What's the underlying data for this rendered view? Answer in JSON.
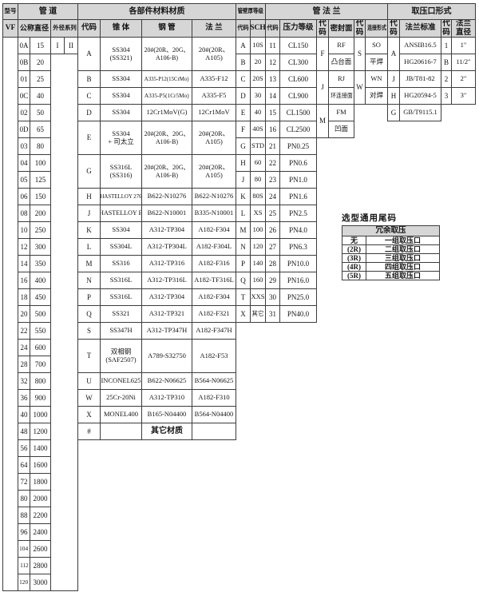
{
  "header": {
    "row1": [
      "型号",
      "管 道",
      "各部件材料材质",
      "管壁厚等级",
      "管 法 兰",
      "取压口形式"
    ],
    "row2": [
      "VF",
      "公称直径",
      "外径系列",
      "代码",
      "锥 体",
      "钢 管",
      "法 兰",
      "代码",
      "SCH",
      "代码",
      "压力等级",
      "代\n码",
      "密封面",
      "代\n码",
      "连接形式",
      "代\n码",
      "法兰标准",
      "代\n码",
      "法兰\n直径"
    ]
  },
  "pipes": [
    [
      "0A",
      "15"
    ],
    [
      "0B",
      "20"
    ],
    [
      "01",
      "25"
    ],
    [
      "0C",
      "40"
    ],
    [
      "02",
      "50"
    ],
    [
      "0D",
      "65"
    ],
    [
      "03",
      "80"
    ],
    [
      "04",
      "100"
    ],
    [
      "05",
      "125"
    ],
    [
      "06",
      "150"
    ],
    [
      "08",
      "200"
    ],
    [
      "10",
      "250"
    ],
    [
      "12",
      "300"
    ],
    [
      "14",
      "350"
    ],
    [
      "16",
      "400"
    ],
    [
      "18",
      "450"
    ],
    [
      "20",
      "500"
    ],
    [
      "22",
      "550"
    ],
    [
      "24",
      "600"
    ],
    [
      "28",
      "700"
    ],
    [
      "32",
      "800"
    ],
    [
      "36",
      "900"
    ],
    [
      "40",
      "1000"
    ],
    [
      "48",
      "1200"
    ],
    [
      "56",
      "1400"
    ],
    [
      "64",
      "1600"
    ],
    [
      "72",
      "1800"
    ],
    [
      "80",
      "2000"
    ],
    [
      "88",
      "2200"
    ],
    [
      "96",
      "2400"
    ],
    [
      "104",
      "2600"
    ],
    [
      "112",
      "2800"
    ],
    [
      "120",
      "3000"
    ]
  ],
  "series": [
    "I",
    "II"
  ],
  "materials": [
    {
      "code": "A",
      "span": 2,
      "cone": "SS304\n(SS321)",
      "pipe": "20#(20R、20G、\nA106-B)",
      "flange": "20#(20R、\nA105)"
    },
    {
      "code": "B",
      "span": 1,
      "cone": "SS304",
      "pipe": "A335-P12(15CrMo)",
      "flange": "A335-F12"
    },
    {
      "code": "C",
      "span": 1,
      "cone": "SS304",
      "pipe": "A335-P5(1Cr5Mo)",
      "flange": "A335-F5"
    },
    {
      "code": "D",
      "span": 1,
      "cone": "SS304",
      "pipe": "12Cr1MoV(G)",
      "flange": "12Cr1MoV"
    },
    {
      "code": "E",
      "span": 2,
      "cone": "SS304\n+ 司太立",
      "pipe": "20#(20R、20G、\nA106-B)",
      "flange": "20#(20R、\nA105)"
    },
    {
      "code": "G",
      "span": 2,
      "cone": "SS316L\n(SS316)",
      "pipe": "20#(20R、20G、\nA106-B)",
      "flange": "20#(20R、\nA105)"
    },
    {
      "code": "H",
      "span": 1,
      "cone": "HASTELLOY 276",
      "pipe": "B622-N10276",
      "flange": "B622-N10276"
    },
    {
      "code": "J",
      "span": 1,
      "cone": "HASTELLOY B",
      "pipe": "B622-N10001",
      "flange": "B335-N10001"
    },
    {
      "code": "K",
      "span": 1,
      "cone": "SS304",
      "pipe": "A312-TP304",
      "flange": "A182-F304"
    },
    {
      "code": "L",
      "span": 1,
      "cone": "SS304L",
      "pipe": "A312-TP304L",
      "flange": "A182-F304L"
    },
    {
      "code": "M",
      "span": 1,
      "cone": "SS316",
      "pipe": "A312-TP316",
      "flange": "A182-F316"
    },
    {
      "code": "N",
      "span": 1,
      "cone": "SS316L",
      "pipe": "A312-TP316L",
      "flange": "A182-TF316L"
    },
    {
      "code": "P",
      "span": 1,
      "cone": "SS316L",
      "pipe": "A312-TP304",
      "flange": "A182-F304"
    },
    {
      "code": "Q",
      "span": 1,
      "cone": "SS321",
      "pipe": "A312-TP321",
      "flange": "A182-F321"
    },
    {
      "code": "S",
      "span": 1,
      "cone": "SS347H",
      "pipe": "A312-TP347H",
      "flange": "A182-F347H"
    },
    {
      "code": "T",
      "span": 2,
      "cone": "双相钢\n(SAF2507)",
      "pipe": "A789-S32750",
      "flange": "A182-F53"
    },
    {
      "code": "U",
      "span": 1,
      "cone": "INCONEL625",
      "pipe": "B622-N06625",
      "flange": "B564-N06625"
    },
    {
      "code": "W",
      "span": 1,
      "cone": "25Cr-20Ni",
      "pipe": "A312-TP310",
      "flange": "A182-F310"
    },
    {
      "code": "X",
      "span": 1,
      "cone": "MONEL400",
      "pipe": "B165-N04400",
      "flange": "B564-N04400"
    },
    {
      "code": "#",
      "span": 1,
      "cone": "",
      "pipe": "其它材质",
      "flange": ""
    }
  ],
  "sch": [
    [
      "A",
      "10S"
    ],
    [
      "B",
      "20"
    ],
    [
      "C",
      "20S"
    ],
    [
      "D",
      "30"
    ],
    [
      "E",
      "40"
    ],
    [
      "F",
      "40S"
    ],
    [
      "G",
      "STD"
    ],
    [
      "H",
      "60"
    ],
    [
      "J",
      "80"
    ],
    [
      "K",
      "80S"
    ],
    [
      "L",
      "XS"
    ],
    [
      "M",
      "100"
    ],
    [
      "N",
      "120"
    ],
    [
      "P",
      "140"
    ],
    [
      "Q",
      "160"
    ],
    [
      "T",
      "XXS"
    ],
    [
      "X",
      "其它"
    ]
  ],
  "pressure": [
    [
      "11",
      "CL150"
    ],
    [
      "12",
      "CL300"
    ],
    [
      "13",
      "CL600"
    ],
    [
      "14",
      "CL900"
    ],
    [
      "15",
      "CL1500"
    ],
    [
      "16",
      "CL2500"
    ],
    [
      "21",
      "PN0.25"
    ],
    [
      "22",
      "PN0.6"
    ],
    [
      "23",
      "PN1.0"
    ],
    [
      "24",
      "PN1.6"
    ],
    [
      "25",
      "PN2.5"
    ],
    [
      "26",
      "PN4.0"
    ],
    [
      "27",
      "PN6.3"
    ],
    [
      "28",
      "PN10.0"
    ],
    [
      "29",
      "PN16.0"
    ],
    [
      "30",
      "PN25.0"
    ],
    [
      "31",
      "PN40.0"
    ]
  ],
  "seal": [
    {
      "code": "F",
      "faces": [
        "RF",
        "凸台面"
      ]
    },
    {
      "code": "J",
      "faces": [
        "RJ",
        "环连接面"
      ]
    },
    {
      "code": "M",
      "faces": [
        "FM",
        "凹面"
      ]
    }
  ],
  "conn": [
    {
      "code": "S",
      "forms": [
        "SO",
        "平焊"
      ]
    },
    {
      "code": "W",
      "forms": [
        "WN",
        "对焊"
      ]
    }
  ],
  "flange_std": [
    {
      "code": "A",
      "span": 2,
      "stds": [
        "ANSIB16.5",
        "HG20616-7"
      ]
    },
    {
      "code": "J",
      "span": 1,
      "stds": [
        "JB/T81-82"
      ]
    },
    {
      "code": "H",
      "span": 1,
      "stds": [
        "HG20594-5"
      ]
    },
    {
      "code": "G",
      "span": 1,
      "stds": [
        "GB/T9115.1"
      ]
    }
  ],
  "flange_dia": [
    [
      "1",
      "1″"
    ],
    [
      "B",
      "11/2″"
    ],
    [
      "2",
      "2″"
    ],
    [
      "3",
      "3″"
    ]
  ],
  "tail": {
    "title": "选型通用尾码",
    "header": "冗余取压",
    "rows": [
      [
        "无",
        "一组取压口"
      ],
      [
        "(2R)",
        "二组取压口"
      ],
      [
        "(3R)",
        "三组取压口"
      ],
      [
        "(4R)",
        "四组取压口"
      ],
      [
        "(5R)",
        "五组取压口"
      ]
    ]
  }
}
